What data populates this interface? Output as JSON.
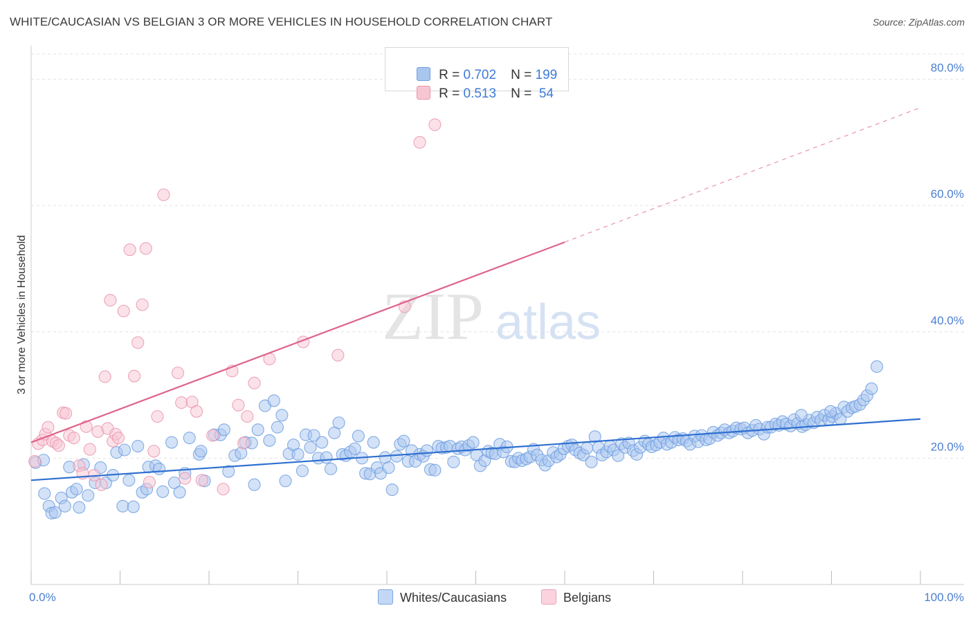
{
  "title": "WHITE/CAUCASIAN VS BELGIAN 3 OR MORE VEHICLES IN HOUSEHOLD CORRELATION CHART",
  "source": "Source: ZipAtlas.com",
  "watermark": {
    "zip": "ZIP",
    "atlas": "atlas"
  },
  "legend": {
    "rows": [
      {
        "r_label": "R = ",
        "r_value": "0.702",
        "n_label": "N = ",
        "n_value": "199",
        "color": "#a9c6ef",
        "border": "#6f9fe0"
      },
      {
        "r_label": "R = ",
        "r_value": "0.513",
        "n_label": "N = ",
        "n_value": " 54",
        "color": "#f7c6d3",
        "border": "#ea95ae"
      }
    ]
  },
  "bottom_legend": [
    {
      "label": "Whites/Caucasians",
      "color": "#c3d8f5",
      "border": "#7aa5e3"
    },
    {
      "label": "Belgians",
      "color": "#fbd3de",
      "border": "#ec9db4"
    }
  ],
  "chart_data": {
    "type": "scatter",
    "title": "WHITE/CAUCASIAN VS BELGIAN 3 OR MORE VEHICLES IN HOUSEHOLD CORRELATION CHART",
    "xlabel": "",
    "ylabel": "3 or more Vehicles in Household",
    "xlim": [
      0,
      100
    ],
    "ylim": [
      0,
      84
    ],
    "x_tick_labels": [
      "0.0%",
      "100.0%"
    ],
    "y_ticks": [
      20,
      40,
      60,
      80
    ],
    "y_tick_labels": [
      "20.0%",
      "40.0%",
      "60.0%",
      "80.0%"
    ],
    "grid": true,
    "legend_placement": "top-center",
    "series": [
      {
        "name": "Whites/Caucasians",
        "color": "#6f9fe0",
        "fill": "#a9c6ef",
        "trend": {
          "x": [
            0,
            100
          ],
          "y": [
            16.5,
            26.2
          ],
          "color": "#2f6fd0"
        },
        "points": [
          [
            0.5,
            19.3
          ],
          [
            1.4,
            19.7
          ],
          [
            1.5,
            14.4
          ],
          [
            2.0,
            12.4
          ],
          [
            2.3,
            11.3
          ],
          [
            2.7,
            11.4
          ],
          [
            3.4,
            13.7
          ],
          [
            3.8,
            12.4
          ],
          [
            4.3,
            18.6
          ],
          [
            4.6,
            14.6
          ],
          [
            5.1,
            15.1
          ],
          [
            5.4,
            12.2
          ],
          [
            5.9,
            19.0
          ],
          [
            6.4,
            14.1
          ],
          [
            7.2,
            16.1
          ],
          [
            7.8,
            18.5
          ],
          [
            8.4,
            16.1
          ],
          [
            9.2,
            17.3
          ],
          [
            9.6,
            20.9
          ],
          [
            10.5,
            21.3
          ],
          [
            10.3,
            12.4
          ],
          [
            11.0,
            16.5
          ],
          [
            11.5,
            12.3
          ],
          [
            12.0,
            21.9
          ],
          [
            12.5,
            14.6
          ],
          [
            13.0,
            15.1
          ],
          [
            13.2,
            18.6
          ],
          [
            14.0,
            18.8
          ],
          [
            14.4,
            18.3
          ],
          [
            14.8,
            14.7
          ],
          [
            15.8,
            22.5
          ],
          [
            16.1,
            16.1
          ],
          [
            16.7,
            14.6
          ],
          [
            17.3,
            17.6
          ],
          [
            17.8,
            23.2
          ],
          [
            18.9,
            20.6
          ],
          [
            19.1,
            21.1
          ],
          [
            19.5,
            16.4
          ],
          [
            20.6,
            23.7
          ],
          [
            21.3,
            23.7
          ],
          [
            21.7,
            24.5
          ],
          [
            22.2,
            17.9
          ],
          [
            22.9,
            20.4
          ],
          [
            23.6,
            20.8
          ],
          [
            24.1,
            22.5
          ],
          [
            24.8,
            22.4
          ],
          [
            25.1,
            15.8
          ],
          [
            25.5,
            24.5
          ],
          [
            26.3,
            28.3
          ],
          [
            26.8,
            22.8
          ],
          [
            27.3,
            29.1
          ],
          [
            27.7,
            24.9
          ],
          [
            28.2,
            26.8
          ],
          [
            28.6,
            16.4
          ],
          [
            29.0,
            20.7
          ],
          [
            29.5,
            22.1
          ],
          [
            30.0,
            20.6
          ],
          [
            30.5,
            18.0
          ],
          [
            30.9,
            23.7
          ],
          [
            31.4,
            21.7
          ],
          [
            31.8,
            23.6
          ],
          [
            32.3,
            20.0
          ],
          [
            32.7,
            22.5
          ],
          [
            33.2,
            20.1
          ],
          [
            33.7,
            18.3
          ],
          [
            34.1,
            24.0
          ],
          [
            34.6,
            25.6
          ],
          [
            35.0,
            20.6
          ],
          [
            35.4,
            20.4
          ],
          [
            35.9,
            21.0
          ],
          [
            36.4,
            21.5
          ],
          [
            36.8,
            23.5
          ],
          [
            37.2,
            20.0
          ],
          [
            37.6,
            17.6
          ],
          [
            38.1,
            17.5
          ],
          [
            38.5,
            22.5
          ],
          [
            38.9,
            18.5
          ],
          [
            39.3,
            17.6
          ],
          [
            39.8,
            20.1
          ],
          [
            40.2,
            18.5
          ],
          [
            40.6,
            15.0
          ],
          [
            41.1,
            20.3
          ],
          [
            41.5,
            22.2
          ],
          [
            41.9,
            22.7
          ],
          [
            42.4,
            19.5
          ],
          [
            42.8,
            21.2
          ],
          [
            43.2,
            19.5
          ],
          [
            43.7,
            20.6
          ],
          [
            44.1,
            20.3
          ],
          [
            44.5,
            21.2
          ],
          [
            44.9,
            18.2
          ],
          [
            45.4,
            18.1
          ],
          [
            45.8,
            21.9
          ],
          [
            46.2,
            21.6
          ],
          [
            46.7,
            21.7
          ],
          [
            47.1,
            21.9
          ],
          [
            47.5,
            19.4
          ],
          [
            48.0,
            21.5
          ],
          [
            48.4,
            21.8
          ],
          [
            48.8,
            21.3
          ],
          [
            49.2,
            22.0
          ],
          [
            49.7,
            22.5
          ],
          [
            50.1,
            20.5
          ],
          [
            50.5,
            18.8
          ],
          [
            51.0,
            19.6
          ],
          [
            51.4,
            21.1
          ],
          [
            51.8,
            20.8
          ],
          [
            52.2,
            20.7
          ],
          [
            52.7,
            22.2
          ],
          [
            53.1,
            21.0
          ],
          [
            53.5,
            21.8
          ],
          [
            54.0,
            19.5
          ],
          [
            54.4,
            19.4
          ],
          [
            54.8,
            20.0
          ],
          [
            55.2,
            19.6
          ],
          [
            55.7,
            19.9
          ],
          [
            56.1,
            20.2
          ],
          [
            56.5,
            21.4
          ],
          [
            56.9,
            20.5
          ],
          [
            57.4,
            19.7
          ],
          [
            57.8,
            18.9
          ],
          [
            58.2,
            19.6
          ],
          [
            58.7,
            20.9
          ],
          [
            59.1,
            20.2
          ],
          [
            59.5,
            20.6
          ],
          [
            59.9,
            21.5
          ],
          [
            60.4,
            21.9
          ],
          [
            60.8,
            22.1
          ],
          [
            61.2,
            21.3
          ],
          [
            61.7,
            20.8
          ],
          [
            62.1,
            20.5
          ],
          [
            62.5,
            21.6
          ],
          [
            63.0,
            19.4
          ],
          [
            63.4,
            23.4
          ],
          [
            63.8,
            21.7
          ],
          [
            64.2,
            20.5
          ],
          [
            64.7,
            21.0
          ],
          [
            65.1,
            21.9
          ],
          [
            65.5,
            21.3
          ],
          [
            66.0,
            20.4
          ],
          [
            66.4,
            22.3
          ],
          [
            66.8,
            21.7
          ],
          [
            67.2,
            22.4
          ],
          [
            67.7,
            21.2
          ],
          [
            68.1,
            20.6
          ],
          [
            68.5,
            21.7
          ],
          [
            69.0,
            22.7
          ],
          [
            69.4,
            22.2
          ],
          [
            69.8,
            21.8
          ],
          [
            70.3,
            22.1
          ],
          [
            70.7,
            22.5
          ],
          [
            71.1,
            23.2
          ],
          [
            71.5,
            22.2
          ],
          [
            72.0,
            22.5
          ],
          [
            72.4,
            23.3
          ],
          [
            72.8,
            22.9
          ],
          [
            73.3,
            23.1
          ],
          [
            73.7,
            22.7
          ],
          [
            74.1,
            22.2
          ],
          [
            74.6,
            23.5
          ],
          [
            75.0,
            22.6
          ],
          [
            75.4,
            23.6
          ],
          [
            75.9,
            22.9
          ],
          [
            76.3,
            23.1
          ],
          [
            76.7,
            24.1
          ],
          [
            77.2,
            23.6
          ],
          [
            77.6,
            24.0
          ],
          [
            78.0,
            24.5
          ],
          [
            78.5,
            24.0
          ],
          [
            78.9,
            24.3
          ],
          [
            79.3,
            24.8
          ],
          [
            79.8,
            24.6
          ],
          [
            80.2,
            24.8
          ],
          [
            80.6,
            24.0
          ],
          [
            81.1,
            24.4
          ],
          [
            81.5,
            25.2
          ],
          [
            81.9,
            24.6
          ],
          [
            82.4,
            23.8
          ],
          [
            82.8,
            24.9
          ],
          [
            83.2,
            24.9
          ],
          [
            83.7,
            25.4
          ],
          [
            84.1,
            25.2
          ],
          [
            84.5,
            25.8
          ],
          [
            84.9,
            25.4
          ],
          [
            85.4,
            25.1
          ],
          [
            85.8,
            26.1
          ],
          [
            86.2,
            25.5
          ],
          [
            86.7,
            25.0
          ],
          [
            87.1,
            25.3
          ],
          [
            87.5,
            26.0
          ],
          [
            88.0,
            25.6
          ],
          [
            88.4,
            26.5
          ],
          [
            88.8,
            26.0
          ],
          [
            89.2,
            26.8
          ],
          [
            89.7,
            26.1
          ],
          [
            90.1,
            26.6
          ],
          [
            90.5,
            27.1
          ],
          [
            91.0,
            26.2
          ],
          [
            91.4,
            28.1
          ],
          [
            91.8,
            27.4
          ],
          [
            92.3,
            28.0
          ],
          [
            92.7,
            28.2
          ],
          [
            93.2,
            28.5
          ],
          [
            93.6,
            29.2
          ],
          [
            94.0,
            29.9
          ],
          [
            94.5,
            31.0
          ],
          [
            95.1,
            34.5
          ],
          [
            86.6,
            26.8
          ],
          [
            89.9,
            27.4
          ]
        ]
      },
      {
        "name": "Belgians",
        "color": "#ea95ae",
        "fill": "#f7c6d3",
        "trend": {
          "x": [
            0,
            60
          ],
          "y": [
            22.5,
            54.2
          ],
          "dashed_to": [
            100,
            75.5
          ],
          "color": "#e0628a"
        },
        "points": [
          [
            0.4,
            19.5
          ],
          [
            0.8,
            22.3
          ],
          [
            1.3,
            22.9
          ],
          [
            1.6,
            23.8
          ],
          [
            1.9,
            24.9
          ],
          [
            2.4,
            22.7
          ],
          [
            2.8,
            22.4
          ],
          [
            3.1,
            22.0
          ],
          [
            3.6,
            27.2
          ],
          [
            3.9,
            27.1
          ],
          [
            4.3,
            23.6
          ],
          [
            4.8,
            23.2
          ],
          [
            5.4,
            18.8
          ],
          [
            5.8,
            17.6
          ],
          [
            6.2,
            25.0
          ],
          [
            6.6,
            21.4
          ],
          [
            7.1,
            17.3
          ],
          [
            7.5,
            24.2
          ],
          [
            7.9,
            15.8
          ],
          [
            8.3,
            32.9
          ],
          [
            8.6,
            24.7
          ],
          [
            8.9,
            45.0
          ],
          [
            9.2,
            22.7
          ],
          [
            9.5,
            23.8
          ],
          [
            9.8,
            23.2
          ],
          [
            10.4,
            43.3
          ],
          [
            11.1,
            53.0
          ],
          [
            11.6,
            33.0
          ],
          [
            12.0,
            38.3
          ],
          [
            12.5,
            44.3
          ],
          [
            12.9,
            53.2
          ],
          [
            13.3,
            16.2
          ],
          [
            13.8,
            21.1
          ],
          [
            14.2,
            26.6
          ],
          [
            14.9,
            61.7
          ],
          [
            16.5,
            33.5
          ],
          [
            16.9,
            28.8
          ],
          [
            17.3,
            16.8
          ],
          [
            18.1,
            28.9
          ],
          [
            18.6,
            27.4
          ],
          [
            19.2,
            16.5
          ],
          [
            20.4,
            23.6
          ],
          [
            21.6,
            15.1
          ],
          [
            22.6,
            33.8
          ],
          [
            23.3,
            28.4
          ],
          [
            23.9,
            22.4
          ],
          [
            24.3,
            26.6
          ],
          [
            25.1,
            31.9
          ],
          [
            26.8,
            35.7
          ],
          [
            30.6,
            38.4
          ],
          [
            34.5,
            36.3
          ],
          [
            43.7,
            70.0
          ],
          [
            45.4,
            72.8
          ],
          [
            42.0,
            44.0
          ]
        ]
      }
    ]
  }
}
